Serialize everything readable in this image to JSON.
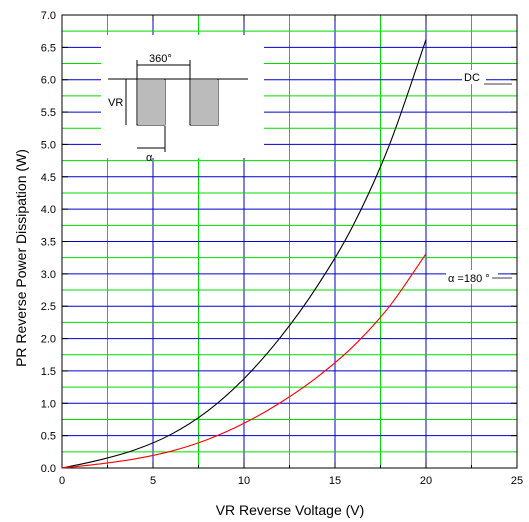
{
  "chart_data": {
    "type": "line",
    "title": "",
    "xlabel": "VR     Reverse Voltage     (V)",
    "ylabel": "PR     Reverse  Power  Dissipation     (W)",
    "xlim": [
      0,
      25
    ],
    "ylim": [
      0,
      7.0
    ],
    "x_major_ticks": [
      0,
      5,
      10,
      15,
      20,
      25
    ],
    "x_tick_labels": [
      "0",
      "5",
      "10",
      "15",
      "20",
      "25"
    ],
    "y_major_ticks": [
      0,
      0.5,
      1.0,
      1.5,
      2.0,
      2.5,
      3.0,
      3.5,
      4.0,
      4.5,
      5.0,
      5.5,
      6.0,
      6.5,
      7.0
    ],
    "y_tick_labels": [
      "0.0",
      "0.5",
      "1.0",
      "1.5",
      "2.0",
      "2.5",
      "3.0",
      "3.5",
      "4.0",
      "4.5",
      "5.0",
      "5.5",
      "6.0",
      "6.5",
      "7.0"
    ],
    "grid": true,
    "grid_colors": {
      "major": "#0000cc",
      "minor": "#00dd00"
    },
    "series": [
      {
        "name": "DC",
        "color": "#000000",
        "x": [
          0,
          2,
          4,
          6,
          8,
          10,
          12,
          14,
          16,
          18,
          20
        ],
        "y": [
          0,
          0.12,
          0.28,
          0.52,
          0.88,
          1.38,
          2.02,
          2.8,
          3.75,
          5.0,
          6.62
        ]
      },
      {
        "name": "α =180 °",
        "color": "#ff0000",
        "x": [
          0,
          2,
          4,
          6,
          8,
          10,
          12,
          14,
          16,
          18,
          20
        ],
        "y": [
          0,
          0.06,
          0.14,
          0.26,
          0.44,
          0.69,
          1.01,
          1.4,
          1.88,
          2.5,
          3.31
        ]
      }
    ],
    "inset": {
      "label_period": "360°",
      "label_amplitude": "VR",
      "label_width": "α"
    }
  }
}
